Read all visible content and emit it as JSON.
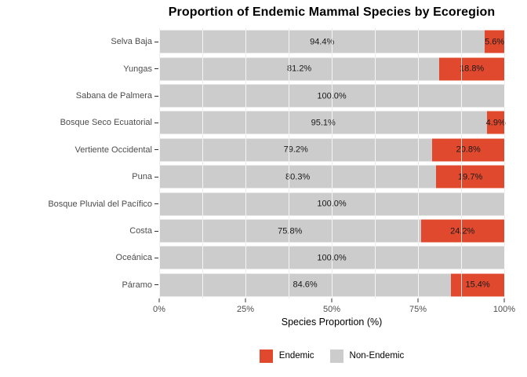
{
  "chart_data": {
    "type": "bar",
    "orientation": "horizontal",
    "stacked": true,
    "title": "Proportion of Endemic Mammal Species by Ecoregion",
    "xlabel": "Species Proportion (%)",
    "xlim": [
      0,
      100
    ],
    "grid": {
      "minor_interval_pct": 12.5,
      "major_interval_pct": 25,
      "gridline_color": "#EDEDED"
    },
    "categories": [
      "Selva Baja",
      "Yungas",
      "Sabana de Palmera",
      "Bosque Seco Ecuatorial",
      "Vertiente Occidental",
      "Puna",
      "Bosque Pluvial del Pacífico",
      "Costa",
      "Oceánica",
      "Páramo"
    ],
    "series": [
      {
        "name": "Non-Endemic",
        "color": "#CCCCCC",
        "values": [
          94.4,
          81.2,
          100.0,
          95.1,
          79.2,
          80.3,
          100.0,
          75.8,
          100.0,
          84.6
        ],
        "labels": [
          "94.4%",
          "81.2%",
          "100.0%",
          "95.1%",
          "79.2%",
          "80.3%",
          "100.0%",
          "75.8%",
          "100.0%",
          "84.6%"
        ]
      },
      {
        "name": "Endemic",
        "color": "#E0492E",
        "values": [
          5.6,
          18.8,
          0,
          4.9,
          20.8,
          19.7,
          0,
          24.2,
          0,
          15.4
        ],
        "labels": [
          "5.6%",
          "18.8%",
          "",
          "4.9%",
          "20.8%",
          "19.7%",
          "",
          "24.2%",
          "",
          "15.4%"
        ]
      }
    ],
    "x_ticks": [
      {
        "label": "0%",
        "pos": 0
      },
      {
        "label": "25%",
        "pos": 25
      },
      {
        "label": "50%",
        "pos": 50
      },
      {
        "label": "75%",
        "pos": 75
      },
      {
        "label": "100%",
        "pos": 100
      }
    ],
    "legend": {
      "position": "bottom",
      "items": [
        {
          "label": "Endemic",
          "color": "#E0492E"
        },
        {
          "label": "Non-Endemic",
          "color": "#CCCCCC"
        }
      ]
    }
  }
}
